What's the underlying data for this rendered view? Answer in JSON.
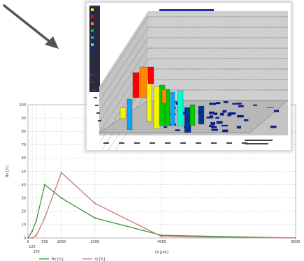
{
  "chart_data": [
    {
      "type": "line",
      "xlabel": "Di [µm]",
      "ylabel": "Bv [%]",
      "xlim": [
        0,
        8000
      ],
      "ylim": [
        0,
        100
      ],
      "yticks": [
        0,
        10,
        20,
        30,
        40,
        50,
        60,
        70,
        80,
        90,
        100
      ],
      "xticks": [
        "0",
        "125",
        "250",
        "500",
        "1000",
        "2000",
        "4000",
        "8000"
      ],
      "grid": true,
      "legend_position": "bottom-left",
      "series": [
        {
          "name": "Bv [%]",
          "color": "#3a9a3a",
          "points": [
            [
              0,
              0
            ],
            [
              125,
              5
            ],
            [
              250,
              13
            ],
            [
              500,
              40
            ],
            [
              1000,
              30
            ],
            [
              2000,
              15
            ],
            [
              4000,
              2
            ],
            [
              8000,
              0
            ]
          ]
        },
        {
          "name": "Q [%]",
          "color": "#c87878",
          "points": [
            [
              0,
              0
            ],
            [
              125,
              0
            ],
            [
              250,
              2
            ],
            [
              500,
              15
            ],
            [
              1000,
              49
            ],
            [
              2000,
              26
            ],
            [
              4000,
              1
            ],
            [
              8000,
              0
            ]
          ]
        }
      ]
    },
    {
      "type": "bar3d",
      "bar_colors": [
        "#f5f500",
        "#ff0000",
        "#ff8800",
        "#00cc00",
        "#00aaff",
        "#00ffcc",
        "#003399"
      ]
    }
  ]
}
